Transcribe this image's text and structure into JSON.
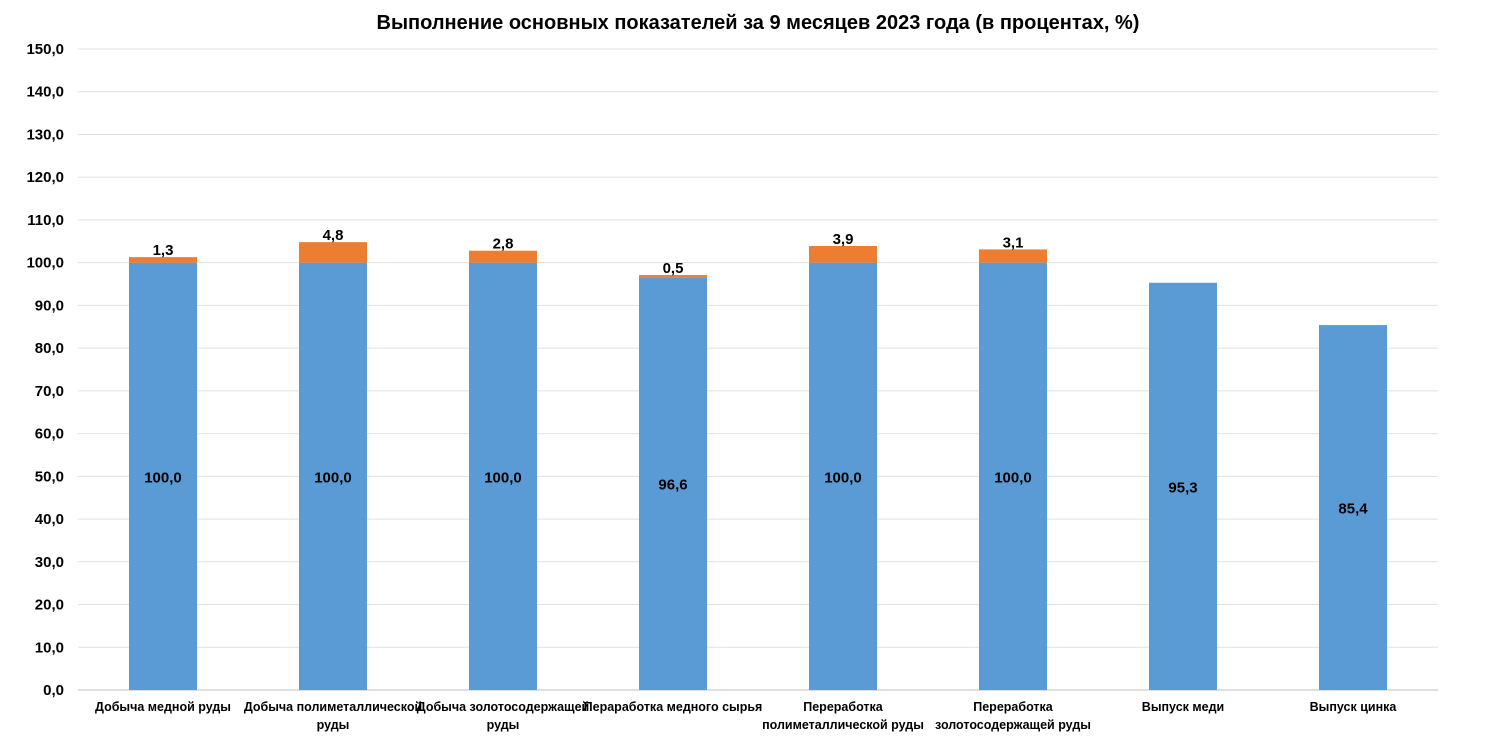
{
  "chart_data": {
    "type": "bar",
    "stacked": true,
    "title": "Выполнение основных показателей за 9 месяцев 2023 года (в процентах, %)",
    "categories": [
      [
        "Добыча медной руды"
      ],
      [
        "Добыча полиметаллической",
        "руды"
      ],
      [
        "Добыча золотосодержащей",
        "руды"
      ],
      [
        "Перaработка медного сырья"
      ],
      [
        "Переработка",
        "полиметаллической руды"
      ],
      [
        "Переработка",
        "золотосодержащей руды"
      ],
      [
        "Выпуск меди"
      ],
      [
        "Выпуск цинка"
      ]
    ],
    "series": [
      {
        "values": [
          100.0,
          100.0,
          100.0,
          96.6,
          100.0,
          100.0,
          95.3,
          85.4
        ],
        "labels": [
          "100,0",
          "100,0",
          "100,0",
          "96,6",
          "100,0",
          "100,0",
          "95,3",
          "85,4"
        ],
        "color": "#5b9bd5"
      },
      {
        "values": [
          1.3,
          4.8,
          2.8,
          0.5,
          3.9,
          3.1,
          null,
          null
        ],
        "labels": [
          "1,3",
          "4,8",
          "2,8",
          "0,5",
          "3,9",
          "3,1",
          "",
          ""
        ],
        "color": "#ed7d31"
      }
    ],
    "yticks": [
      "0,0",
      "10,0",
      "20,0",
      "30,0",
      "40,0",
      "50,0",
      "60,0",
      "70,0",
      "80,0",
      "90,0",
      "100,0",
      "110,0",
      "120,0",
      "130,0",
      "140,0",
      "150,0"
    ],
    "ylim": [
      0,
      150
    ],
    "grid": true,
    "legend": "none"
  }
}
